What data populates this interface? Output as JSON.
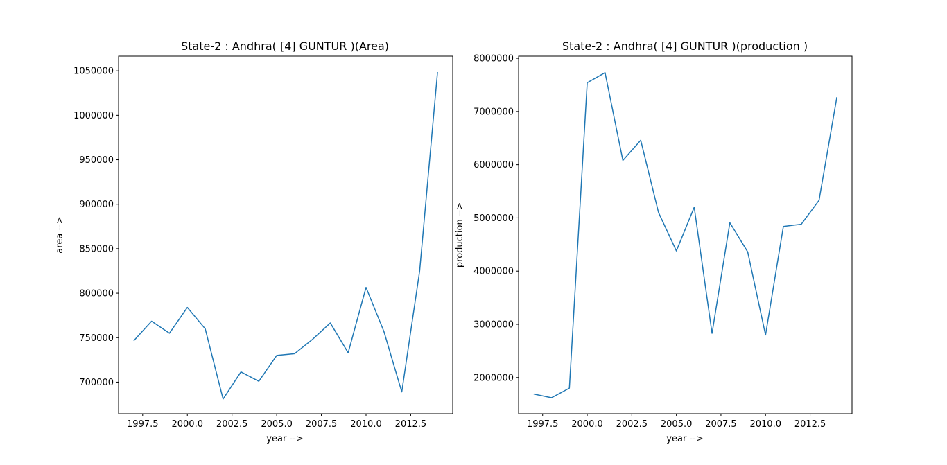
{
  "chart_data": [
    {
      "type": "line",
      "title": "State-2 : Andhra( [4] GUNTUR )(Area)",
      "xlabel": "year -->",
      "ylabel": "area -->",
      "xlim": [
        1996.15,
        2014.85
      ],
      "ylim": [
        664500,
        1066500
      ],
      "xticks": [
        1997.5,
        2000.0,
        2002.5,
        2005.0,
        2007.5,
        2010.0,
        2012.5
      ],
      "xtick_labels": [
        "1997.5",
        "2000.0",
        "2002.5",
        "2005.0",
        "2007.5",
        "2010.0",
        "2012.5"
      ],
      "yticks": [
        700000,
        750000,
        800000,
        850000,
        900000,
        950000,
        1000000,
        1050000
      ],
      "ytick_labels": [
        "700000",
        "750000",
        "800000",
        "850000",
        "900000",
        "950000",
        "1000000",
        "1050000"
      ],
      "x": [
        1997,
        1998,
        1999,
        2000,
        2001,
        2002,
        2003,
        2004,
        2005,
        2006,
        2007,
        2008,
        2009,
        2010,
        2011,
        2012,
        2013,
        2014
      ],
      "series": [
        {
          "values": [
            746500,
            768500,
            755000,
            784000,
            760000,
            681000,
            711500,
            701000,
            730000,
            732000,
            748000,
            766500,
            733000,
            806500,
            757000,
            689000,
            825000,
            1048500
          ]
        }
      ],
      "grid": false,
      "color": "#1f77b4"
    },
    {
      "type": "line",
      "title": "State-2 : Andhra( [4] GUNTUR )(production )",
      "xlabel": "year -->",
      "ylabel": "production -->",
      "xlim": [
        1996.15,
        2014.85
      ],
      "ylim": [
        1320000,
        8040000
      ],
      "xticks": [
        1997.5,
        2000.0,
        2002.5,
        2005.0,
        2007.5,
        2010.0,
        2012.5
      ],
      "xtick_labels": [
        "1997.5",
        "2000.0",
        "2002.5",
        "2005.0",
        "2007.5",
        "2010.0",
        "2012.5"
      ],
      "yticks": [
        2000000,
        3000000,
        4000000,
        5000000,
        6000000,
        7000000,
        8000000
      ],
      "ytick_labels": [
        "2000000",
        "3000000",
        "4000000",
        "5000000",
        "6000000",
        "7000000",
        "8000000"
      ],
      "x": [
        1997,
        1998,
        1999,
        2000,
        2001,
        2002,
        2003,
        2004,
        2005,
        2006,
        2007,
        2008,
        2009,
        2010,
        2011,
        2012,
        2013,
        2014
      ],
      "series": [
        {
          "values": [
            1690000,
            1620000,
            1800000,
            7540000,
            7730000,
            6080000,
            6460000,
            5100000,
            4380000,
            5200000,
            2830000,
            4910000,
            4360000,
            2800000,
            4840000,
            4880000,
            5330000,
            7270000
          ]
        }
      ],
      "grid": false,
      "color": "#1f77b4"
    }
  ]
}
